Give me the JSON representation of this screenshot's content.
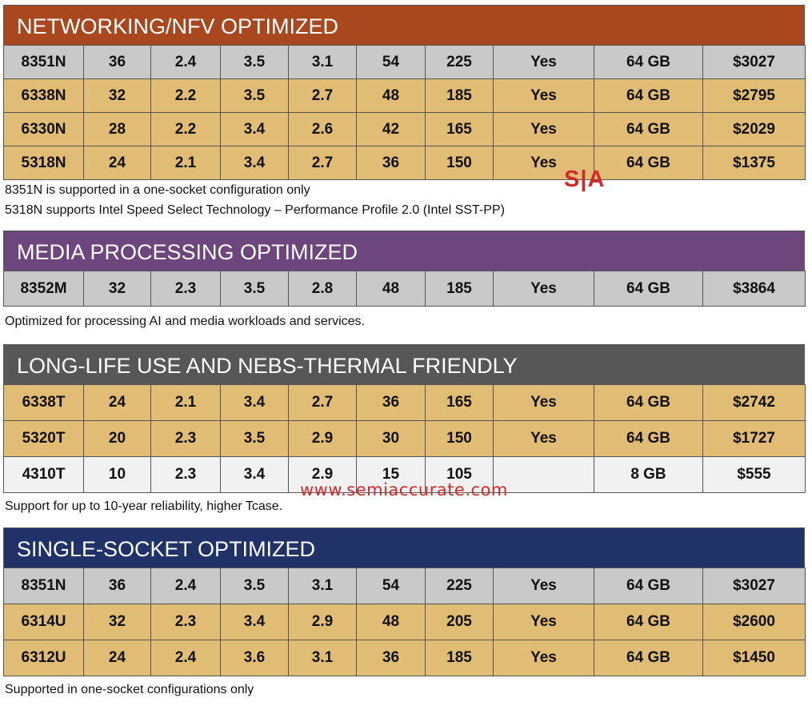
{
  "colors": {
    "networking": "#a9481f",
    "media": "#6c467c",
    "longlife": "#575757",
    "single": "#213268",
    "row_gray": "#c9c9c9",
    "row_gold": "#e0bc74",
    "row_light": "#f1f1f1",
    "brand_red": "#d12a2a"
  },
  "networking": {
    "title": "NETWORKING/NFV OPTIMIZED",
    "rows": [
      [
        "8351N",
        "36",
        "2.4",
        "3.5",
        "3.1",
        "54",
        "225",
        "Yes",
        "64 GB",
        "$3027"
      ],
      [
        "6338N",
        "32",
        "2.2",
        "3.5",
        "2.7",
        "48",
        "185",
        "Yes",
        "64 GB",
        "$2795"
      ],
      [
        "6330N",
        "28",
        "2.2",
        "3.4",
        "2.6",
        "42",
        "165",
        "Yes",
        "64 GB",
        "$2029"
      ],
      [
        "5318N",
        "24",
        "2.1",
        "3.4",
        "2.7",
        "36",
        "150",
        "Yes",
        "64 GB",
        "$1375"
      ]
    ],
    "notes": [
      "8351N is supported in a one-socket configuration only",
      "5318N supports Intel Speed Select Technology – Performance Profile 2.0 (Intel SST-PP)"
    ]
  },
  "media": {
    "title": "MEDIA PROCESSING OPTIMIZED",
    "rows": [
      [
        "8352M",
        "32",
        "2.3",
        "3.5",
        "2.8",
        "48",
        "185",
        "Yes",
        "64 GB",
        "$3864"
      ]
    ],
    "note": "Optimized for processing AI and media workloads and services."
  },
  "longlife": {
    "title": "LONG-LIFE USE AND NEBS-THERMAL FRIENDLY",
    "rows": [
      [
        "6338T",
        "24",
        "2.1",
        "3.4",
        "2.7",
        "36",
        "165",
        "Yes",
        "64 GB",
        "$2742"
      ],
      [
        "5320T",
        "20",
        "2.3",
        "3.5",
        "2.9",
        "30",
        "150",
        "Yes",
        "64 GB",
        "$1727"
      ],
      [
        "4310T",
        "10",
        "2.3",
        "3.4",
        "2.9",
        "15",
        "105",
        "",
        "8 GB",
        "$555"
      ]
    ],
    "note": "Support for up to 10-year reliability, higher Tcase."
  },
  "single": {
    "title": "SINGLE-SOCKET OPTIMIZED",
    "rows": [
      [
        "8351N",
        "36",
        "2.4",
        "3.5",
        "3.1",
        "54",
        "225",
        "Yes",
        "64 GB",
        "$3027"
      ],
      [
        "6314U",
        "32",
        "2.3",
        "3.4",
        "2.9",
        "48",
        "205",
        "Yes",
        "64 GB",
        "$2600"
      ],
      [
        "6312U",
        "24",
        "2.4",
        "3.6",
        "3.1",
        "36",
        "185",
        "Yes",
        "64 GB",
        "$1450"
      ]
    ],
    "note": "Supported in one-socket configurations only"
  },
  "logo": "S|A",
  "watermark": "www.semiaccurate.com"
}
